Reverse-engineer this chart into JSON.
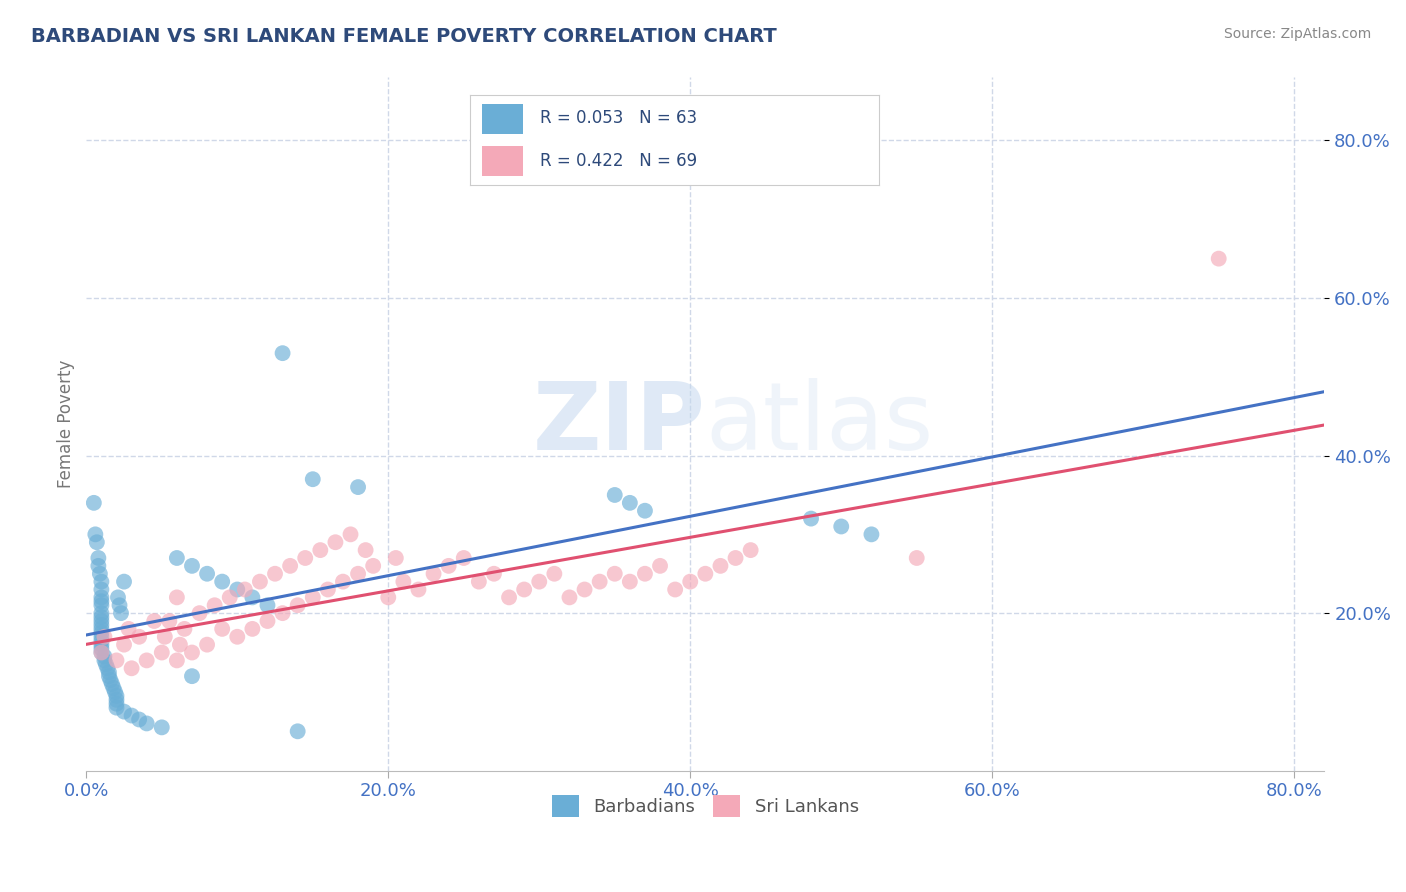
{
  "title": "BARBADIAN VS SRI LANKAN FEMALE POVERTY CORRELATION CHART",
  "source": "Source: ZipAtlas.com",
  "ylabel": "Female Poverty",
  "x_tick_vals": [
    0.0,
    0.2,
    0.4,
    0.6,
    0.8
  ],
  "y_tick_vals": [
    0.2,
    0.4,
    0.6,
    0.8
  ],
  "xlim": [
    0.0,
    0.82
  ],
  "ylim": [
    0.0,
    0.88
  ],
  "barbadian_color": "#6aaed6",
  "srilankan_color": "#f4a9b8",
  "barbadian_R": 0.053,
  "barbadian_N": 63,
  "srilankan_R": 0.422,
  "srilankan_N": 69,
  "trend_blue": "#4472c4",
  "trend_pink": "#e05070",
  "watermark_zip": "ZIP",
  "watermark_atlas": "atlas",
  "background_color": "#ffffff",
  "grid_color": "#d0d8e8",
  "title_color": "#2e4a7a",
  "legend_label1": "Barbadians",
  "legend_label2": "Sri Lankans",
  "barbadian_x": [
    0.005,
    0.006,
    0.007,
    0.008,
    0.008,
    0.009,
    0.01,
    0.01,
    0.01,
    0.01,
    0.01,
    0.01,
    0.01,
    0.01,
    0.01,
    0.01,
    0.01,
    0.01,
    0.01,
    0.01,
    0.01,
    0.01,
    0.012,
    0.012,
    0.013,
    0.014,
    0.015,
    0.015,
    0.016,
    0.017,
    0.018,
    0.019,
    0.02,
    0.02,
    0.02,
    0.02,
    0.021,
    0.022,
    0.023,
    0.025,
    0.025,
    0.03,
    0.035,
    0.04,
    0.05,
    0.06,
    0.07,
    0.08,
    0.09,
    0.1,
    0.11,
    0.12,
    0.13,
    0.14,
    0.15,
    0.18,
    0.35,
    0.36,
    0.37,
    0.48,
    0.5,
    0.52,
    0.07
  ],
  "barbadian_y": [
    0.34,
    0.3,
    0.29,
    0.27,
    0.26,
    0.25,
    0.24,
    0.23,
    0.22,
    0.215,
    0.21,
    0.2,
    0.195,
    0.19,
    0.185,
    0.18,
    0.175,
    0.17,
    0.165,
    0.16,
    0.155,
    0.15,
    0.145,
    0.14,
    0.135,
    0.13,
    0.125,
    0.12,
    0.115,
    0.11,
    0.105,
    0.1,
    0.095,
    0.09,
    0.085,
    0.08,
    0.22,
    0.21,
    0.2,
    0.24,
    0.075,
    0.07,
    0.065,
    0.06,
    0.055,
    0.27,
    0.26,
    0.25,
    0.24,
    0.23,
    0.22,
    0.21,
    0.53,
    0.05,
    0.37,
    0.36,
    0.35,
    0.34,
    0.33,
    0.32,
    0.31,
    0.3,
    0.12
  ],
  "srilankan_x": [
    0.01,
    0.012,
    0.02,
    0.025,
    0.028,
    0.03,
    0.035,
    0.04,
    0.045,
    0.05,
    0.052,
    0.055,
    0.06,
    0.062,
    0.065,
    0.07,
    0.075,
    0.08,
    0.085,
    0.09,
    0.095,
    0.1,
    0.105,
    0.11,
    0.115,
    0.12,
    0.125,
    0.13,
    0.135,
    0.14,
    0.145,
    0.15,
    0.155,
    0.16,
    0.165,
    0.17,
    0.175,
    0.18,
    0.185,
    0.19,
    0.2,
    0.205,
    0.21,
    0.22,
    0.23,
    0.24,
    0.25,
    0.26,
    0.27,
    0.28,
    0.29,
    0.3,
    0.31,
    0.32,
    0.33,
    0.34,
    0.35,
    0.36,
    0.37,
    0.38,
    0.39,
    0.4,
    0.41,
    0.42,
    0.43,
    0.44,
    0.55,
    0.75,
    0.06
  ],
  "srilankan_y": [
    0.15,
    0.17,
    0.14,
    0.16,
    0.18,
    0.13,
    0.17,
    0.14,
    0.19,
    0.15,
    0.17,
    0.19,
    0.14,
    0.16,
    0.18,
    0.15,
    0.2,
    0.16,
    0.21,
    0.18,
    0.22,
    0.17,
    0.23,
    0.18,
    0.24,
    0.19,
    0.25,
    0.2,
    0.26,
    0.21,
    0.27,
    0.22,
    0.28,
    0.23,
    0.29,
    0.24,
    0.3,
    0.25,
    0.28,
    0.26,
    0.22,
    0.27,
    0.24,
    0.23,
    0.25,
    0.26,
    0.27,
    0.24,
    0.25,
    0.22,
    0.23,
    0.24,
    0.25,
    0.22,
    0.23,
    0.24,
    0.25,
    0.24,
    0.25,
    0.26,
    0.23,
    0.24,
    0.25,
    0.26,
    0.27,
    0.28,
    0.27,
    0.65,
    0.22
  ]
}
